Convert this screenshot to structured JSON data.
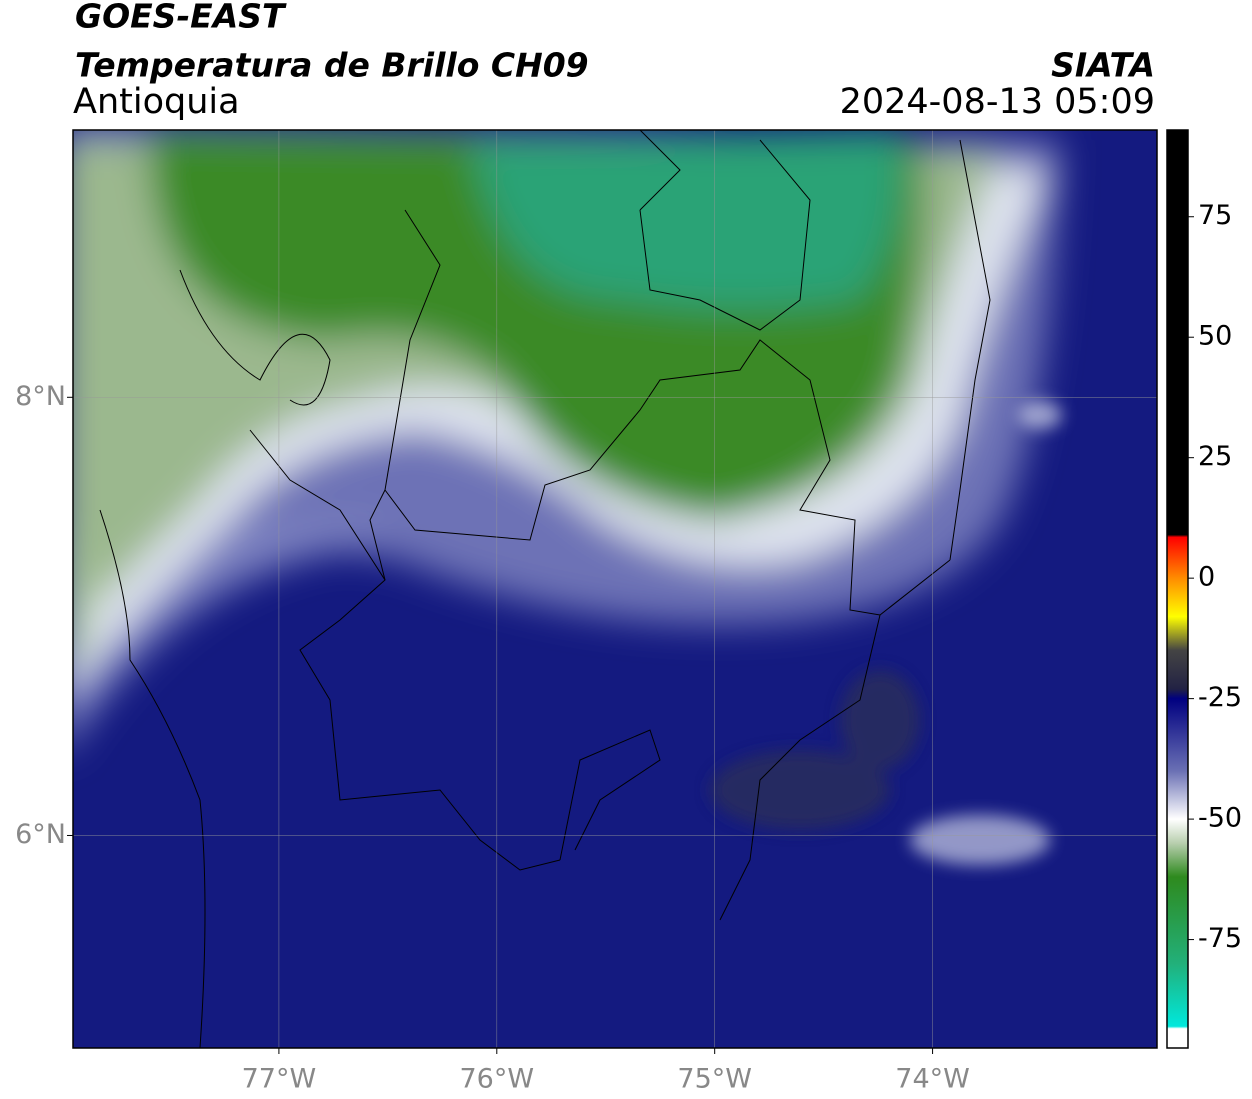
{
  "header": {
    "satellite": "GOES-EAST",
    "product": "Temperatura de Brillo CH09",
    "region": "Antioquia",
    "source": "SIATA",
    "datetime": "2024-08-13 05:09"
  },
  "map": {
    "xlim": [
      -77.945,
      -72.97
    ],
    "ylim": [
      5.03,
      9.22
    ],
    "xticks": [
      {
        "value": -77,
        "label": "77°W"
      },
      {
        "value": -76,
        "label": "76°W"
      },
      {
        "value": -75,
        "label": "75°W"
      },
      {
        "value": -74,
        "label": "74°W"
      }
    ],
    "yticks": [
      {
        "value": 6,
        "label": "6°N"
      },
      {
        "value": 8,
        "label": "8°N"
      }
    ],
    "grid": true
  },
  "colorbar": {
    "lim": [
      -97.5,
      93
    ],
    "ticks": [
      75,
      50,
      25,
      0,
      -25,
      -50,
      -75
    ],
    "stops": [
      {
        "value": 93,
        "color": "#000000"
      },
      {
        "value": 9,
        "color": "#000000"
      },
      {
        "value": 8.5,
        "color": "#ff0000"
      },
      {
        "value": 0,
        "color": "#ff8c00"
      },
      {
        "value": -8,
        "color": "#ffff00"
      },
      {
        "value": -15,
        "color": "#444444"
      },
      {
        "value": -23,
        "color": "#222244"
      },
      {
        "value": -25,
        "color": "#000080"
      },
      {
        "value": -40,
        "color": "#6a70b4"
      },
      {
        "value": -50,
        "color": "#ffffff"
      },
      {
        "value": -55,
        "color": "#b8ceae"
      },
      {
        "value": -62,
        "color": "#2e8a1e"
      },
      {
        "value": -80,
        "color": "#22b07a"
      },
      {
        "value": -93,
        "color": "#00e8dc"
      },
      {
        "value": -93.5,
        "color": "#ffffff"
      },
      {
        "value": -97.5,
        "color": "#ffffff"
      }
    ]
  }
}
